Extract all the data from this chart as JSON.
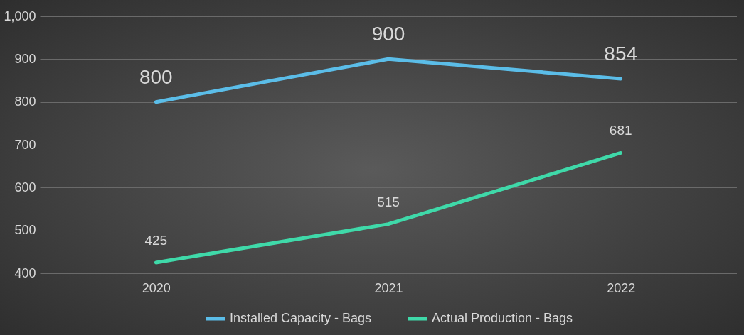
{
  "chart_data": {
    "type": "line",
    "categories": [
      "2020",
      "2021",
      "2022"
    ],
    "series": [
      {
        "name": "Installed Capacity - Bags",
        "color": "#5bbde8",
        "values": [
          800,
          900,
          854
        ]
      },
      {
        "name": "Actual Production - Bags",
        "color": "#3fd9a9",
        "values": [
          425,
          515,
          681
        ]
      }
    ],
    "ylim": [
      400,
      1000
    ],
    "yticks": [
      400,
      500,
      600,
      700,
      800,
      900,
      {
        "value": 1000,
        "label": "1,000"
      }
    ],
    "grid": "y",
    "legend": "bottom",
    "data_labels": true,
    "line_style": "solid",
    "marker": "none"
  }
}
